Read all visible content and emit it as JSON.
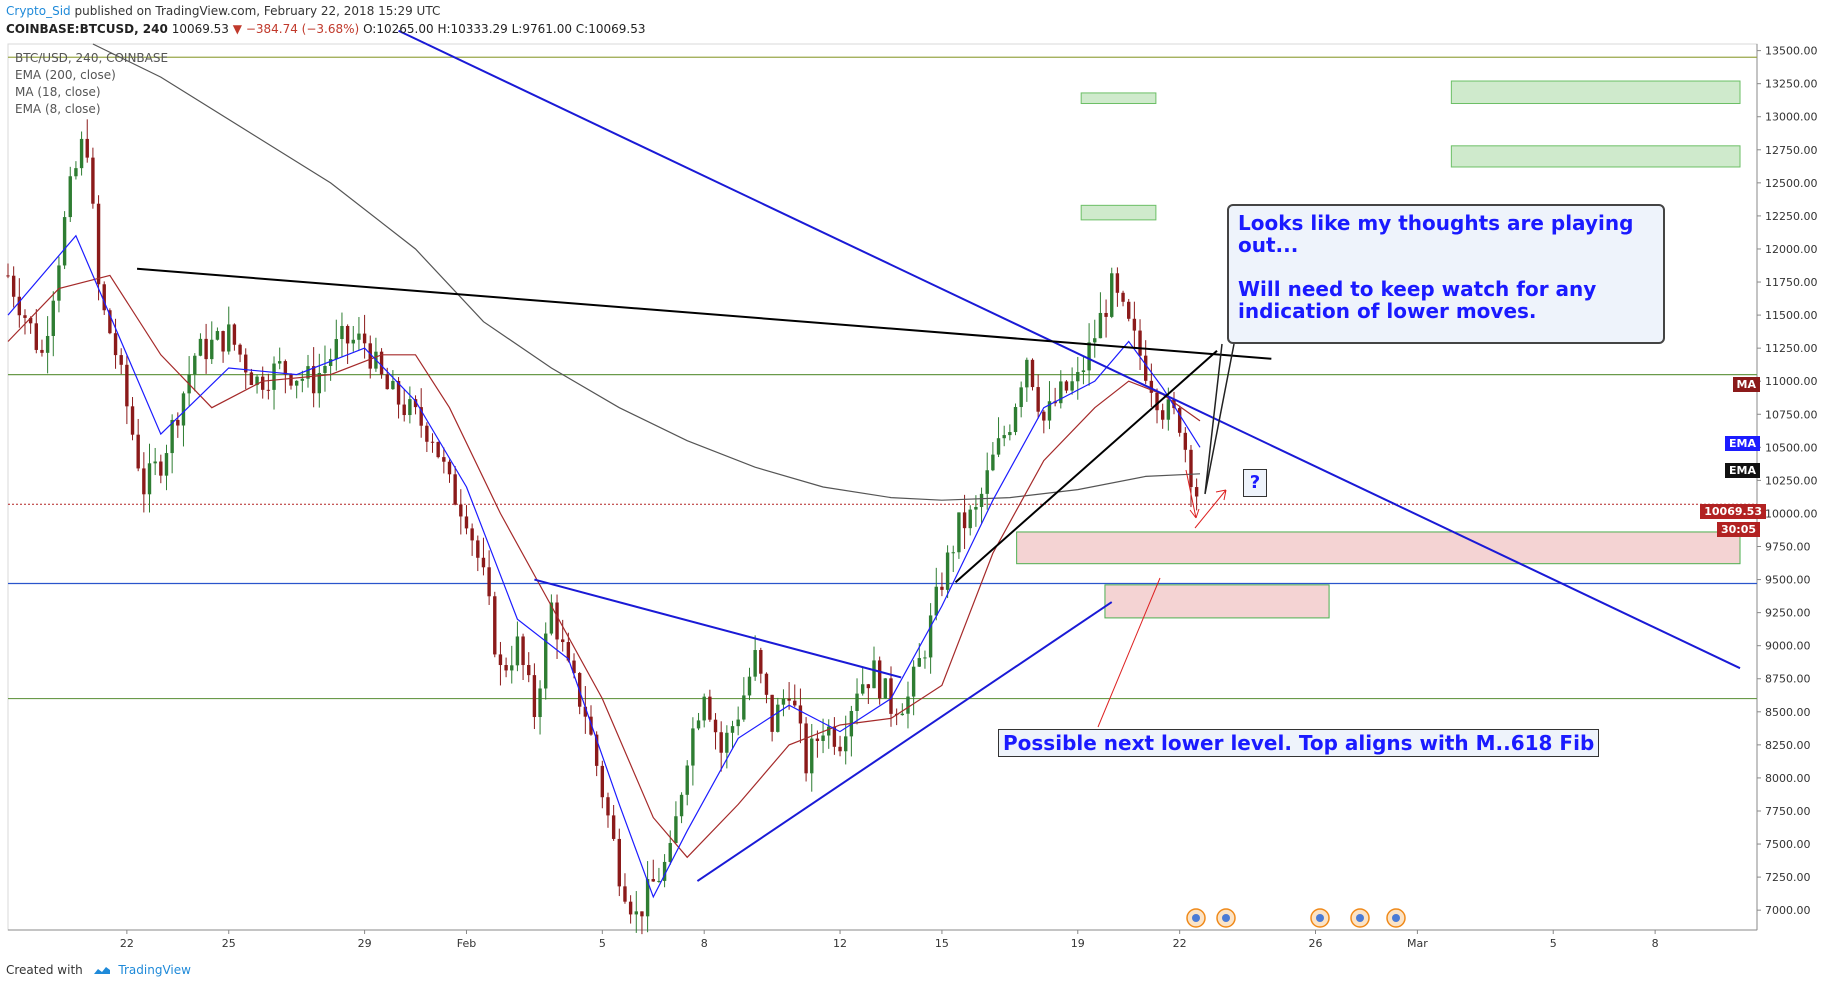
{
  "header": {
    "author": "Crypto_Sid",
    "published": "published on TradingView.com, February 22, 2018 15:29 UTC"
  },
  "symbol_line": {
    "symbol": "COINBASE:BTCUSD, 240",
    "last": "10069.53",
    "change": "▼ −384.74 (−3.68%)",
    "o_label": "O:",
    "o": "10265.00",
    "h_label": "H:",
    "h": "10333.29",
    "l_label": "L:",
    "l": "9761.00",
    "c_label": "C:",
    "c": "10069.53"
  },
  "indicators": {
    "title": "BTC/USD, 240, COINBASE",
    "ema200": "EMA (200, close)",
    "ma18": "MA (18, close)",
    "ema8": "EMA (8, close)"
  },
  "annotations": {
    "note_line1": "Looks like my thoughts are playing out...",
    "note_line2": "Will need to keep watch for any indication of lower moves.",
    "lower_level": "Possible next lower level.   Top aligns with M..618 Fib",
    "question": "?"
  },
  "price_tags": {
    "ma": "MA",
    "ema1": "EMA",
    "ema2": "EMA",
    "last_price": "10069.53",
    "countdown": "30:05"
  },
  "footer": {
    "created_with": "Created with",
    "brand": "TradingView"
  },
  "colors": {
    "up": "#2e7d32",
    "down": "#8b1a1a",
    "ema8": "#1c1cff",
    "ma18": "#a52a2a",
    "ema200": "#555555",
    "trend_blue": "#1a1ad6",
    "zone_green": "#cfeacc",
    "zone_red": "#f4d3d3"
  },
  "chart_data": {
    "type": "candlestick",
    "title": "BTC/USD, 240, COINBASE",
    "ylim": [
      6850,
      13550
    ],
    "y_ticks": [
      7000,
      7250,
      7500,
      7750,
      8000,
      8250,
      8500,
      8750,
      9000,
      9250,
      9500,
      9750,
      10000,
      10250,
      10500,
      10750,
      11000,
      11250,
      11500,
      11750,
      12000,
      12250,
      12500,
      12750,
      13000,
      13250,
      13500
    ],
    "y_tick_labels": [
      "7000.00",
      "7250.00",
      "7500.00",
      "7750.00",
      "8000.00",
      "8250.00",
      "8500.00",
      "8750.00",
      "9000.00",
      "9250.00",
      "9500.00",
      "9750.00",
      "10000.00",
      "10250.00",
      "10500.00",
      "10750.00",
      "11000.00",
      "11250.00",
      "11500.00",
      "11750.00",
      "12000.00",
      "12250.00",
      "12500.00",
      "12750.00",
      "13000.00",
      "13250.00",
      "13500.00"
    ],
    "x_ticks": [
      {
        "label": "22",
        "day": 22
      },
      {
        "label": "25",
        "day": 25
      },
      {
        "label": "29",
        "day": 29
      },
      {
        "label": "Feb",
        "day": 32
      },
      {
        "label": "5",
        "day": 36
      },
      {
        "label": "8",
        "day": 39
      },
      {
        "label": "12",
        "day": 43
      },
      {
        "label": "15",
        "day": 46
      },
      {
        "label": "19",
        "day": 50
      },
      {
        "label": "22",
        "day": 53
      },
      {
        "label": "26",
        "day": 57
      },
      {
        "label": "Mar",
        "day": 60
      },
      {
        "label": "5",
        "day": 64
      },
      {
        "label": "8",
        "day": 67
      }
    ],
    "x_domain_days": [
      18.5,
      70
    ],
    "close_path": [
      [
        18.5,
        11800
      ],
      [
        19.5,
        11200
      ],
      [
        20.3,
        12400
      ],
      [
        20.8,
        12900
      ],
      [
        21.2,
        11600
      ],
      [
        21.6,
        11300
      ],
      [
        22.5,
        10200
      ],
      [
        23.0,
        10400
      ],
      [
        23.4,
        10700
      ],
      [
        24.0,
        11200
      ],
      [
        25.0,
        11350
      ],
      [
        25.8,
        11000
      ],
      [
        26.5,
        11100
      ],
      [
        27.5,
        11000
      ],
      [
        28.3,
        11300
      ],
      [
        29.0,
        11300
      ],
      [
        29.6,
        10950
      ],
      [
        30.2,
        10800
      ],
      [
        31.0,
        10600
      ],
      [
        31.5,
        10200
      ],
      [
        32.0,
        10000
      ],
      [
        32.5,
        9500
      ],
      [
        33.0,
        8800
      ],
      [
        33.5,
        9000
      ],
      [
        34.0,
        8500
      ],
      [
        34.5,
        9300
      ],
      [
        35.0,
        8800
      ],
      [
        35.5,
        8500
      ],
      [
        36.0,
        7900
      ],
      [
        36.5,
        7300
      ],
      [
        37.0,
        6950
      ],
      [
        37.5,
        7200
      ],
      [
        38.0,
        7400
      ],
      [
        38.5,
        8200
      ],
      [
        39.0,
        8700
      ],
      [
        39.5,
        8200
      ],
      [
        40.0,
        8500
      ],
      [
        40.5,
        8900
      ],
      [
        41.0,
        8400
      ],
      [
        41.5,
        8700
      ],
      [
        42.0,
        8100
      ],
      [
        42.5,
        8400
      ],
      [
        43.0,
        8300
      ],
      [
        43.5,
        8700
      ],
      [
        44.0,
        8800
      ],
      [
        44.5,
        8550
      ],
      [
        45.0,
        8600
      ],
      [
        45.5,
        9000
      ],
      [
        46.0,
        9500
      ],
      [
        46.5,
        9900
      ],
      [
        47.0,
        10000
      ],
      [
        47.5,
        10400
      ],
      [
        48.0,
        10700
      ],
      [
        48.5,
        11200
      ],
      [
        49.0,
        10700
      ],
      [
        49.5,
        10900
      ],
      [
        50.0,
        11000
      ],
      [
        50.5,
        11350
      ],
      [
        51.0,
        11700
      ],
      [
        51.5,
        11400
      ],
      [
        52.0,
        11100
      ],
      [
        52.5,
        10800
      ],
      [
        53.0,
        10700
      ],
      [
        53.3,
        10350
      ],
      [
        53.6,
        10069
      ]
    ],
    "ema8_path": [
      [
        18.5,
        11500
      ],
      [
        20.5,
        12100
      ],
      [
        21.5,
        11500
      ],
      [
        23.0,
        10600
      ],
      [
        25.0,
        11100
      ],
      [
        27.0,
        11050
      ],
      [
        29.0,
        11250
      ],
      [
        30.5,
        10850
      ],
      [
        32.0,
        10200
      ],
      [
        33.5,
        9200
      ],
      [
        35.0,
        8900
      ],
      [
        36.5,
        7800
      ],
      [
        37.5,
        7100
      ],
      [
        38.5,
        7600
      ],
      [
        40.0,
        8300
      ],
      [
        41.5,
        8550
      ],
      [
        43.0,
        8350
      ],
      [
        44.5,
        8600
      ],
      [
        46.0,
        9300
      ],
      [
        47.5,
        10100
      ],
      [
        49.0,
        10800
      ],
      [
        50.5,
        11000
      ],
      [
        51.5,
        11300
      ],
      [
        52.5,
        10950
      ],
      [
        53.6,
        10500
      ]
    ],
    "ma18_path": [
      [
        18.5,
        11300
      ],
      [
        20.0,
        11700
      ],
      [
        21.5,
        11800
      ],
      [
        23.0,
        11200
      ],
      [
        24.5,
        10800
      ],
      [
        26.0,
        11000
      ],
      [
        28.0,
        11050
      ],
      [
        29.5,
        11200
      ],
      [
        30.5,
        11200
      ],
      [
        31.5,
        10800
      ],
      [
        33.0,
        10000
      ],
      [
        34.5,
        9300
      ],
      [
        36.0,
        8600
      ],
      [
        37.5,
        7700
      ],
      [
        38.5,
        7400
      ],
      [
        40.0,
        7800
      ],
      [
        41.5,
        8250
      ],
      [
        43.0,
        8400
      ],
      [
        44.5,
        8450
      ],
      [
        46.0,
        8700
      ],
      [
        47.5,
        9700
      ],
      [
        49.0,
        10400
      ],
      [
        50.5,
        10800
      ],
      [
        51.5,
        11000
      ],
      [
        52.5,
        10900
      ],
      [
        53.6,
        10700
      ]
    ],
    "ema200_path": [
      [
        21.0,
        13550
      ],
      [
        23.0,
        13300
      ],
      [
        25.5,
        12900
      ],
      [
        28.0,
        12500
      ],
      [
        30.5,
        12000
      ],
      [
        32.5,
        11450
      ],
      [
        34.5,
        11100
      ],
      [
        36.5,
        10800
      ],
      [
        38.5,
        10550
      ],
      [
        40.5,
        10350
      ],
      [
        42.5,
        10200
      ],
      [
        44.5,
        10120
      ],
      [
        46.0,
        10100
      ],
      [
        48.0,
        10120
      ],
      [
        50.0,
        10180
      ],
      [
        52.0,
        10280
      ],
      [
        53.6,
        10300
      ]
    ],
    "horizontal_levels": [
      {
        "value": 13450,
        "color": "#9aa74a"
      },
      {
        "value": 11050,
        "color": "#6a9a4a"
      },
      {
        "value": 9470,
        "color": "#2a55cc"
      },
      {
        "value": 8600,
        "color": "#6a9a4a"
      }
    ],
    "zones": [
      {
        "x0": 50.1,
        "x1": 52.3,
        "y0": 13100,
        "y1": 13180,
        "color": "green"
      },
      {
        "x0": 50.1,
        "x1": 52.3,
        "y0": 12220,
        "y1": 12330,
        "color": "green"
      },
      {
        "x0": 61.0,
        "x1": 69.5,
        "y0": 13100,
        "y1": 13270,
        "color": "green"
      },
      {
        "x0": 61.0,
        "x1": 69.5,
        "y0": 12620,
        "y1": 12780,
        "color": "green"
      },
      {
        "x0": 48.2,
        "x1": 69.5,
        "y0": 9620,
        "y1": 9860,
        "color": "red"
      },
      {
        "x0": 50.8,
        "x1": 57.4,
        "y0": 9210,
        "y1": 9460,
        "color": "red"
      }
    ],
    "trendlines": [
      {
        "p1": [
          30.0,
          13650
        ],
        "p2": [
          69.5,
          8830
        ],
        "color": "blue"
      },
      {
        "p1": [
          22.3,
          11850
        ],
        "p2": [
          55.7,
          11170
        ],
        "color": "black"
      },
      {
        "p1": [
          46.4,
          9480
        ],
        "p2": [
          54.1,
          11230
        ],
        "color": "black"
      },
      {
        "p1": [
          34.0,
          9500
        ],
        "p2": [
          44.8,
          8760
        ],
        "color": "blue"
      },
      {
        "p1": [
          38.8,
          7220
        ],
        "p2": [
          51.0,
          9330
        ],
        "color": "blue"
      }
    ]
  }
}
